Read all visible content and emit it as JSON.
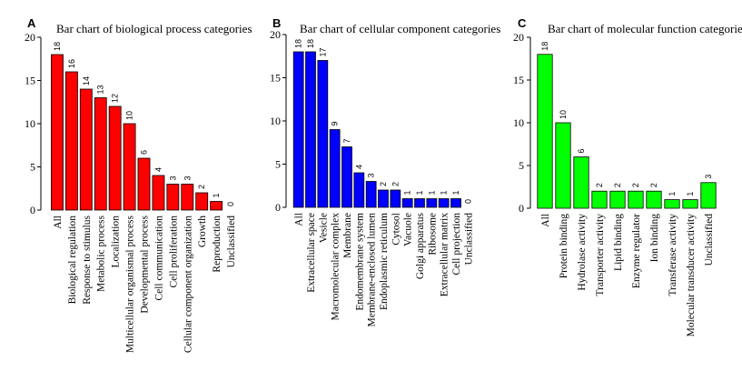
{
  "chart_data": [
    {
      "type": "bar",
      "panel": "A",
      "title": "Bar chart of biological process categories",
      "color": "#ff0000",
      "ylim": [
        0,
        20
      ],
      "yticks": [
        0,
        5,
        10,
        15,
        20
      ],
      "categories": [
        "All",
        "Biological regulation",
        "Response to stimulus",
        "Metabolic process",
        "Localization",
        "Multicellular organismal process",
        "Developmental process",
        "Cell communication",
        "Cell proliferation",
        "Cellular component organization",
        "Growth",
        "Reproduction",
        "Unclassified"
      ],
      "values": [
        18,
        16,
        14,
        13,
        12,
        10,
        6,
        4,
        3,
        3,
        2,
        1,
        0
      ]
    },
    {
      "type": "bar",
      "panel": "B",
      "title": "Bar chart of cellular component categories",
      "color": "#0000ff",
      "ylim": [
        0,
        20
      ],
      "yticks": [
        0,
        5,
        10,
        15,
        20
      ],
      "categories": [
        "All",
        "Extracellular space",
        "Vesicle",
        "Macromolecular complex",
        "Membrane",
        "Endomembrane system",
        "Membrane-enclosed lumen",
        "Endoplasmic reticulum",
        "Cytosol",
        "Vacuole",
        "Golgi apparatus",
        "Ribosome",
        "Extracellular matrix",
        "Cell projection",
        "Unclassified"
      ],
      "values": [
        18,
        18,
        17,
        9,
        7,
        4,
        3,
        2,
        2,
        1,
        1,
        1,
        1,
        1,
        0
      ]
    },
    {
      "type": "bar",
      "panel": "C",
      "title": "Bar chart of molecular function categories",
      "color": "#00ff00",
      "ylim": [
        0,
        20
      ],
      "yticks": [
        0,
        5,
        10,
        15,
        20
      ],
      "categories": [
        "All",
        "Protein binding",
        "Hydrolase activity",
        "Transporter activity",
        "Lipid binding",
        "Enzyme regulator",
        "Ion binding",
        "Transferase activity",
        "Molecular transducer activity",
        "Unclassified"
      ],
      "values": [
        18,
        10,
        6,
        2,
        2,
        2,
        2,
        1,
        1,
        3
      ]
    }
  ]
}
